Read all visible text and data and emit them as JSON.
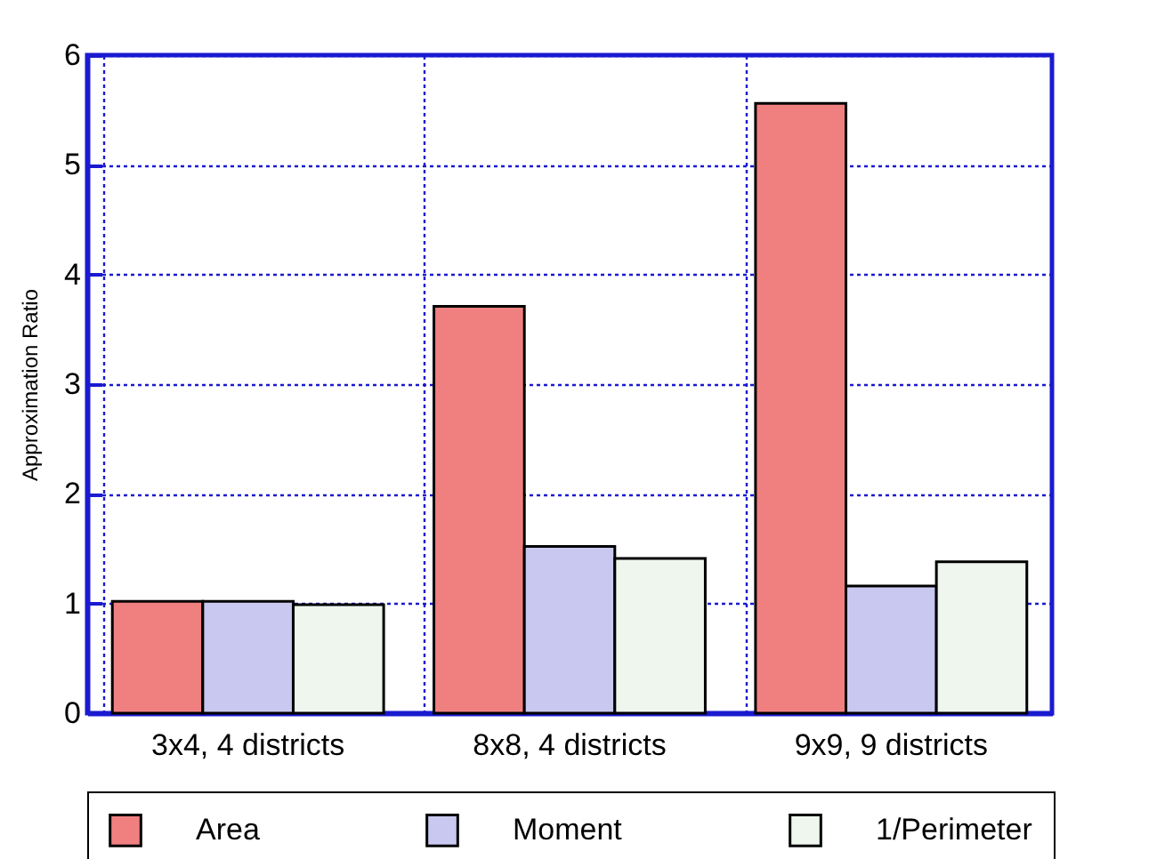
{
  "chart_data": {
    "type": "bar",
    "ylabel": "Approximation Ratio",
    "categories": [
      "3x4, 4 districts",
      "8x8, 4 districts",
      "9x9, 9 districts"
    ],
    "series": [
      {
        "name": "Area",
        "color": "#f08080",
        "values": [
          1.02,
          3.71,
          5.56
        ]
      },
      {
        "name": "Moment",
        "color": "#c8c8f0",
        "values": [
          1.02,
          1.52,
          1.16
        ]
      },
      {
        "name": "1/Perimeter",
        "color": "#eef6ee",
        "values": [
          0.99,
          1.41,
          1.38
        ]
      }
    ],
    "ylim": [
      0,
      6
    ],
    "yticks": [
      0,
      1,
      2,
      3,
      4,
      5,
      6
    ],
    "grid": true,
    "legend": "bottom"
  }
}
